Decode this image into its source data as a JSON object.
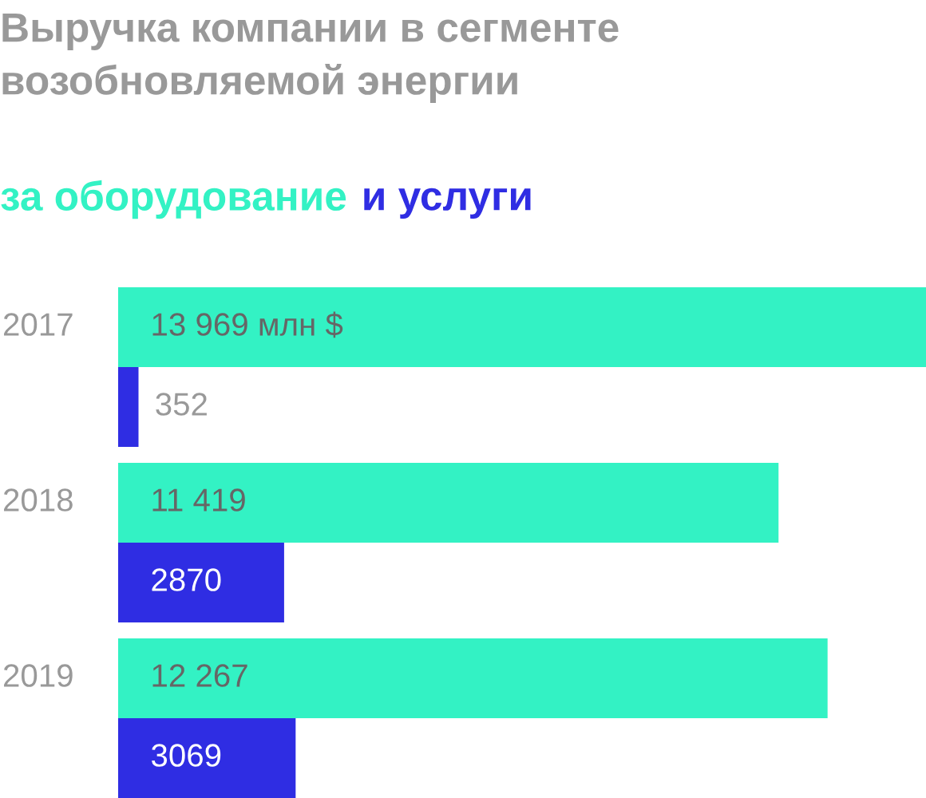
{
  "chart_data": {
    "type": "bar",
    "orientation": "horizontal",
    "title": "Выручка компании в сегменте возобновляемой энергии",
    "categories": [
      "2017",
      "2018",
      "2019"
    ],
    "series": [
      {
        "name": "за оборудование",
        "color": "#33f2c4",
        "values": [
          13969,
          11419,
          12267
        ],
        "value_labels": [
          "13 969 млн $",
          "11 419",
          "12 267"
        ]
      },
      {
        "name": "и услуги",
        "color": "#2f2de3",
        "values": [
          352,
          2870,
          3069
        ],
        "value_labels": [
          "352",
          "2870",
          "3069"
        ]
      }
    ],
    "xlim": [
      0,
      13969
    ],
    "legend": "top left",
    "grid": false,
    "tick_labels": "y"
  }
}
